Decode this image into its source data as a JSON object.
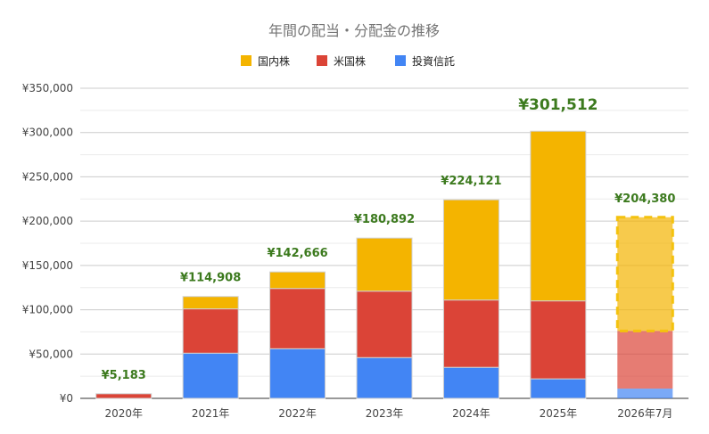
{
  "chart_data": {
    "type": "bar",
    "stacked": true,
    "title": "年間の配当・分配金の推移",
    "categories": [
      "2020年",
      "2021年",
      "2022年",
      "2023年",
      "2024年",
      "2025年",
      "2026年7月"
    ],
    "series": [
      {
        "name": "投資信託",
        "color": "#4285f4",
        "values": [
          0,
          51000,
          56000,
          46000,
          35000,
          22000,
          11000
        ]
      },
      {
        "name": "米国株",
        "color": "#db4437",
        "values": [
          5183,
          50000,
          68000,
          75000,
          76000,
          88000,
          65000
        ]
      },
      {
        "name": "国内株",
        "color": "#f4b400",
        "values": [
          0,
          13908,
          18666,
          59892,
          113121,
          191512,
          128380
        ]
      }
    ],
    "legend_order": [
      "国内株",
      "米国株",
      "投資信託"
    ],
    "totals": [
      "¥5,183",
      "¥114,908",
      "¥142,666",
      "¥180,892",
      "¥224,121",
      "¥301,512",
      "¥204,380"
    ],
    "highlight_total_index": 5,
    "projected_index": 6,
    "y_ticks": [
      "¥0",
      "¥50,000",
      "¥100,000",
      "¥150,000",
      "¥200,000",
      "¥250,000",
      "¥300,000",
      "¥350,000"
    ],
    "ylim": [
      0,
      350000
    ],
    "grid": true,
    "legend_position": "top"
  }
}
